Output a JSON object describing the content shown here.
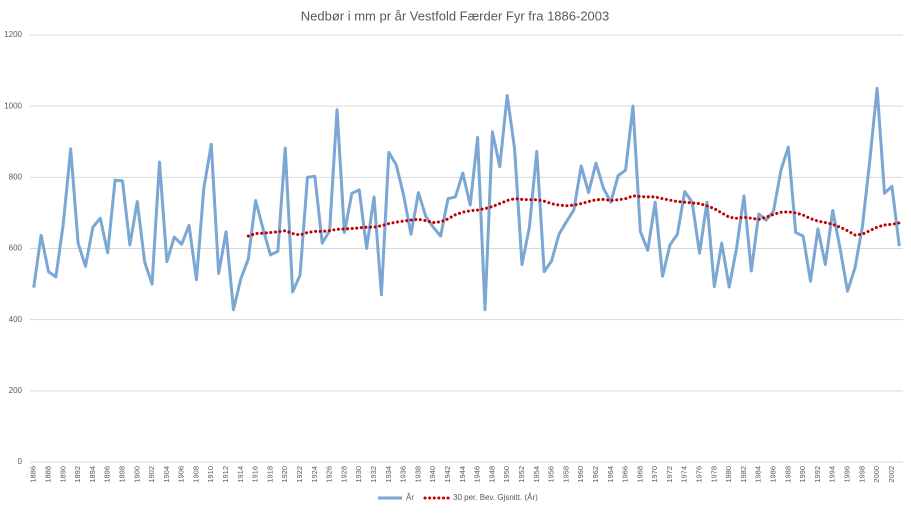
{
  "chart_data": {
    "type": "line",
    "title": "Nedbør i mm pr år Vestfold Færder Fyr fra 1886-2003",
    "categories": [
      "1886",
      null,
      "1888",
      null,
      "1890",
      null,
      "1892",
      null,
      "1894",
      null,
      "1896",
      null,
      "1898",
      null,
      "1900",
      null,
      "1902",
      null,
      "1904",
      null,
      "1906",
      null,
      "1908",
      null,
      "1910",
      null,
      "1912",
      null,
      "1914",
      null,
      "1916",
      null,
      "1918",
      null,
      "1920",
      null,
      "1922",
      null,
      "1924",
      null,
      "1926",
      null,
      "1928",
      null,
      "1930",
      null,
      "1932",
      null,
      "1934",
      null,
      "1936",
      null,
      "1938",
      null,
      "1940",
      null,
      "1942",
      null,
      "1944",
      null,
      "1946",
      null,
      "1948",
      null,
      "1950",
      null,
      "1952",
      null,
      "1954",
      null,
      "1956",
      null,
      "1958",
      null,
      "1960",
      null,
      "1962",
      null,
      "1964",
      null,
      "1966",
      null,
      "1968",
      null,
      "1970",
      null,
      "1972",
      null,
      "1974",
      null,
      "1976",
      null,
      "1978",
      null,
      "1980",
      null,
      "1982",
      null,
      "1984",
      null,
      "1986",
      null,
      "1988",
      null,
      "1990",
      null,
      "1992",
      null,
      "1994",
      null,
      "1996",
      null,
      "1998",
      null,
      "2000",
      null,
      "2002",
      null
    ],
    "series": [
      {
        "name": "År",
        "color": "#7ba7d4",
        "style": "solid",
        "values": [
          490,
          637,
          535,
          520,
          670,
          880,
          615,
          550,
          660,
          685,
          588,
          792,
          790,
          610,
          732,
          562,
          500,
          843,
          563,
          632,
          612,
          665,
          512,
          770,
          893,
          530,
          647,
          428,
          515,
          570,
          735,
          655,
          582,
          592,
          882,
          478,
          525,
          800,
          803,
          615,
          650,
          990,
          645,
          755,
          765,
          600,
          745,
          470,
          870,
          835,
          750,
          640,
          757,
          690,
          660,
          635,
          740,
          745,
          812,
          722,
          912,
          428,
          928,
          830,
          1030,
          880,
          555,
          660,
          873,
          535,
          565,
          640,
          675,
          708,
          832,
          757,
          840,
          770,
          730,
          805,
          820,
          1000,
          648,
          595,
          730,
          522,
          610,
          640,
          760,
          730,
          587,
          730,
          493,
          615,
          492,
          600,
          748,
          537,
          697,
          680,
          705,
          820,
          885,
          645,
          635,
          508,
          655,
          555,
          707,
          600,
          480,
          545,
          660,
          845,
          1050,
          755,
          775,
          607
        ]
      },
      {
        "name": "30 per. Bev. Gjsnitt. (År)",
        "color": "#c00000",
        "style": "dotted",
        "values": [
          null,
          null,
          null,
          null,
          null,
          null,
          null,
          null,
          null,
          null,
          null,
          null,
          null,
          null,
          null,
          null,
          null,
          null,
          null,
          null,
          null,
          null,
          null,
          null,
          null,
          null,
          null,
          null,
          null,
          635,
          642,
          643,
          645,
          647,
          650,
          642,
          638,
          645,
          648,
          648,
          650,
          654,
          655,
          656,
          658,
          660,
          660,
          664,
          670,
          674,
          677,
          680,
          682,
          678,
          673,
          675,
          683,
          695,
          702,
          706,
          708,
          712,
          718,
          726,
          735,
          740,
          738,
          737,
          737,
          733,
          726,
          722,
          720,
          722,
          726,
          732,
          737,
          738,
          735,
          737,
          740,
          748,
          746,
          745,
          745,
          740,
          736,
          732,
          730,
          728,
          726,
          720,
          712,
          700,
          688,
          685,
          688,
          685,
          682,
          688,
          696,
          702,
          703,
          700,
          694,
          684,
          677,
          673,
          668,
          660,
          650,
          638,
          640,
          650,
          660,
          666,
          668,
          672
        ]
      }
    ],
    "ylim": [
      0,
      1200
    ],
    "yticks": [
      0,
      200,
      400,
      600,
      800,
      1000,
      1200
    ],
    "grid": true,
    "legend": "bottom"
  }
}
